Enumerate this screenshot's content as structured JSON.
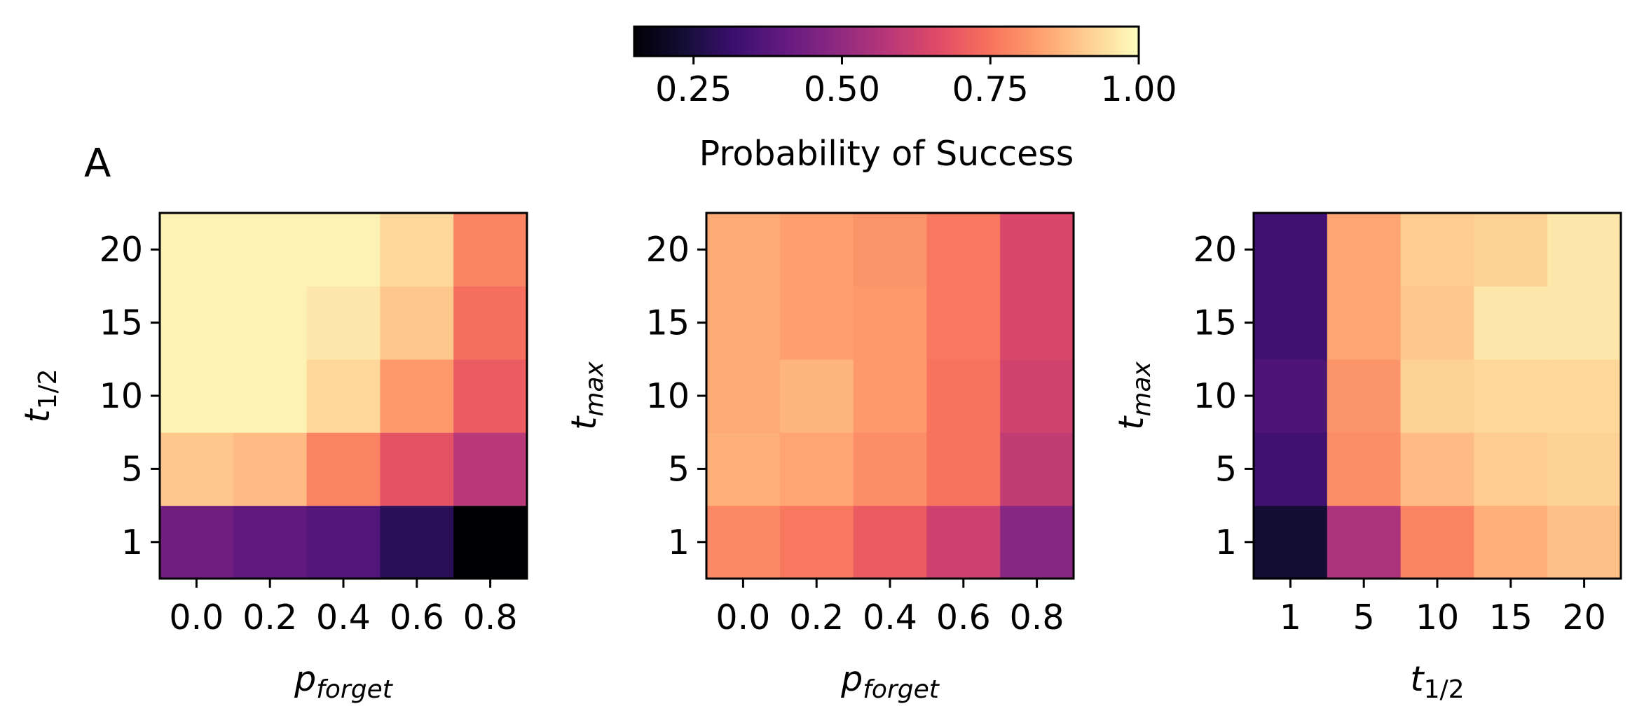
{
  "panel_letter": "A",
  "colorbar": {
    "label": "Probability of Success",
    "ticks": [
      "0.25",
      "0.50",
      "0.75",
      "1.00"
    ],
    "tick_values": [
      0.25,
      0.5,
      0.75,
      1.0
    ],
    "range": [
      0.15,
      1.0
    ],
    "colormap": "magma"
  },
  "chart_data": [
    {
      "type": "heatmap",
      "title": "",
      "x_categories": [
        "0.0",
        "0.2",
        "0.4",
        "0.6",
        "0.8"
      ],
      "y_categories": [
        "1",
        "5",
        "10",
        "15",
        "20"
      ],
      "xlabel": {
        "base": "p",
        "sub": "forget"
      },
      "ylabel": {
        "base": "t",
        "sub": "1/2"
      },
      "values": [
        [
          0.43,
          0.4,
          0.37,
          0.28,
          0.15
        ],
        [
          0.9,
          0.88,
          0.78,
          0.68,
          0.58
        ],
        [
          0.98,
          0.98,
          0.93,
          0.82,
          0.7
        ],
        [
          0.98,
          0.98,
          0.96,
          0.9,
          0.74
        ],
        [
          0.98,
          0.98,
          0.98,
          0.93,
          0.78
        ]
      ]
    },
    {
      "type": "heatmap",
      "title": "",
      "x_categories": [
        "0.0",
        "0.2",
        "0.4",
        "0.6",
        "0.8"
      ],
      "y_categories": [
        "1",
        "5",
        "10",
        "15",
        "20"
      ],
      "xlabel": {
        "base": "p",
        "sub": "forget"
      },
      "ylabel": {
        "base": "t",
        "sub": "max"
      },
      "values": [
        [
          0.79,
          0.76,
          0.7,
          0.62,
          0.48
        ],
        [
          0.86,
          0.84,
          0.8,
          0.75,
          0.6
        ],
        [
          0.85,
          0.87,
          0.82,
          0.75,
          0.63
        ],
        [
          0.85,
          0.83,
          0.82,
          0.76,
          0.65
        ],
        [
          0.85,
          0.83,
          0.81,
          0.76,
          0.65
        ]
      ]
    },
    {
      "type": "heatmap",
      "title": "",
      "x_categories": [
        "1",
        "5",
        "10",
        "15",
        "20"
      ],
      "y_categories": [
        "1",
        "5",
        "10",
        "15",
        "20"
      ],
      "xlabel": {
        "base": "t",
        "sub": "1/2"
      },
      "ylabel": {
        "base": "t",
        "sub": "max"
      },
      "values": [
        [
          0.23,
          0.55,
          0.78,
          0.86,
          0.89
        ],
        [
          0.33,
          0.8,
          0.88,
          0.91,
          0.92
        ],
        [
          0.36,
          0.81,
          0.92,
          0.93,
          0.93
        ],
        [
          0.33,
          0.84,
          0.9,
          0.96,
          0.96
        ],
        [
          0.33,
          0.84,
          0.91,
          0.92,
          0.96
        ]
      ]
    }
  ]
}
